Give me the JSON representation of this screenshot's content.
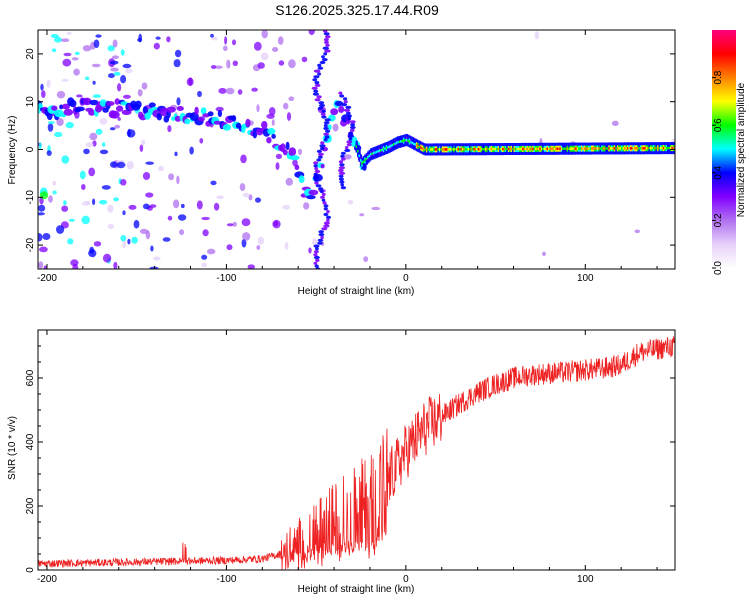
{
  "title": "S126.2025.325.17.44.R09",
  "chart_data": [
    {
      "type": "heatmap",
      "name": "spectrogram",
      "xlabel": "Height of straight line (km)",
      "ylabel": "Frequency (Hz)",
      "xlim": [
        -205,
        150
      ],
      "ylim": [
        -25,
        25
      ],
      "xticks": [
        -200,
        -100,
        0,
        100
      ],
      "yticks": [
        -20,
        -10,
        0,
        10,
        20
      ],
      "colorbar": {
        "label": "Normalized spectral amplitude",
        "range": [
          0.0,
          1.0
        ],
        "ticks": [
          "0.0",
          "0.2",
          "0.4",
          "0.6",
          "0.8"
        ],
        "colors": [
          "#ffffff",
          "#e6d0fa",
          "#b070f0",
          "#8000ff",
          "#0000ff",
          "#00ffff",
          "#00ff00",
          "#ffff00",
          "#ff8000",
          "#ff0000",
          "#ff0080"
        ]
      },
      "ridge": {
        "description_points_km_hz": [
          [
            -205,
            8
          ],
          [
            -175,
            9
          ],
          [
            -160,
            8.5
          ],
          [
            -140,
            8
          ],
          [
            -120,
            7
          ],
          [
            -100,
            6
          ],
          [
            -80,
            4
          ],
          [
            -65,
            0
          ],
          [
            -55,
            -10
          ],
          [
            -48,
            -5
          ],
          [
            -42,
            5
          ],
          [
            -38,
            10
          ],
          [
            -35,
            7
          ],
          [
            -30,
            3
          ],
          [
            -25,
            -3
          ],
          [
            -20,
            -1
          ],
          [
            -10,
            0.5
          ],
          [
            -5,
            1.5
          ],
          [
            0,
            2
          ],
          [
            5,
            1
          ],
          [
            10,
            0
          ],
          [
            150,
            0.3
          ]
        ],
        "peak_amplitude": 0.95
      }
    },
    {
      "type": "line",
      "name": "snr",
      "xlabel": "Height of straight line (km)",
      "ylabel": "SNR (10 * v/v)",
      "xlim": [
        -205,
        150
      ],
      "ylim": [
        0,
        750
      ],
      "xticks": [
        -200,
        -100,
        0,
        100
      ],
      "yticks": [
        0,
        200,
        400,
        600
      ],
      "color": "#ee2222",
      "x": [
        -205,
        -180,
        -150,
        -120,
        -100,
        -80,
        -70,
        -60,
        -50,
        -40,
        -30,
        -20,
        -10,
        0,
        10,
        20,
        30,
        40,
        50,
        60,
        70,
        80,
        90,
        100,
        110,
        120,
        130,
        140,
        150
      ],
      "y": [
        20,
        22,
        25,
        28,
        30,
        35,
        50,
        80,
        110,
        150,
        180,
        200,
        280,
        370,
        440,
        480,
        520,
        555,
        580,
        600,
        610,
        615,
        618,
        625,
        630,
        640,
        680,
        690,
        700
      ]
    }
  ]
}
